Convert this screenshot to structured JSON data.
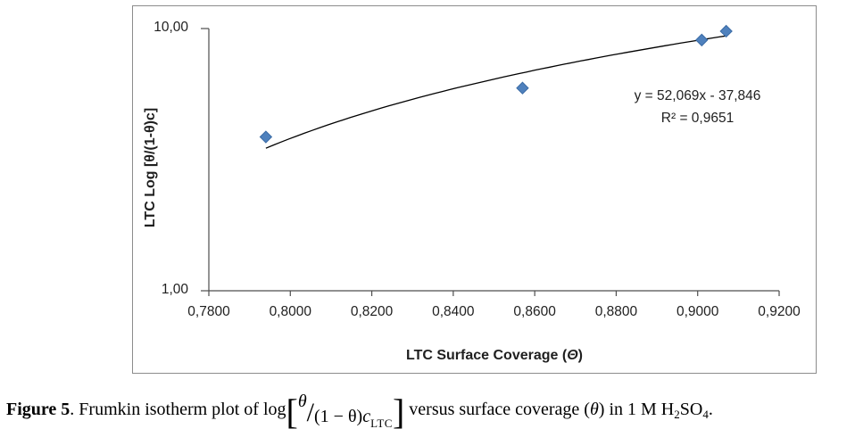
{
  "chart_data": {
    "type": "scatter",
    "title": "",
    "xlabel": "LTC Surface Coverage (",
    "xlabel_theta": "Θ",
    "xlabel_close": ")",
    "ylabel": "LTC Log [θ/(1-θ)c]",
    "x_ticks": [
      "0,7800",
      "0,8000",
      "0,8200",
      "0,8400",
      "0,8600",
      "0,8800",
      "0,9000",
      "0,9200"
    ],
    "y_ticks": [
      "10,00",
      "1,00"
    ],
    "x_range": [
      0.78,
      0.92
    ],
    "y_range": [
      1,
      10
    ],
    "y_scale": "log",
    "grid": false,
    "legend": "none",
    "marker": "diamond",
    "points": [
      {
        "x": 0.794,
        "y": 3.86
      },
      {
        "x": 0.857,
        "y": 5.93
      },
      {
        "x": 0.901,
        "y": 9.04
      },
      {
        "x": 0.907,
        "y": 9.77
      }
    ],
    "trendline": {
      "fit": "linear",
      "slope": 52.069,
      "intercept": -37.846,
      "x_start": 0.794,
      "x_end": 0.907,
      "equation": "y = 52,069x - 37,846",
      "r_squared": "R² = 0,9651"
    },
    "colors": {
      "marker_fill": "#4F81BD",
      "marker_stroke": "#3A6BA5",
      "trendline": "#000000",
      "axis": "#4D4D4D",
      "frame_border": "#8C8C8C",
      "text": "#1F1F1F"
    }
  },
  "caption": {
    "label": "Figure 5",
    "intro": ". Frumkin isotherm plot of log",
    "formula": {
      "open": "[",
      "num": "θ",
      "slash": "/",
      "den": "(1 − θ)",
      "den_var": "c",
      "den_sub": "LTC",
      "close": "]"
    },
    "outro_1": " versus surface coverage (",
    "outro_theta": "θ",
    "outro_2": ") in 1 M H",
    "sub_2": "2",
    "so": "SO",
    "sub_4": "4",
    "period": "."
  }
}
